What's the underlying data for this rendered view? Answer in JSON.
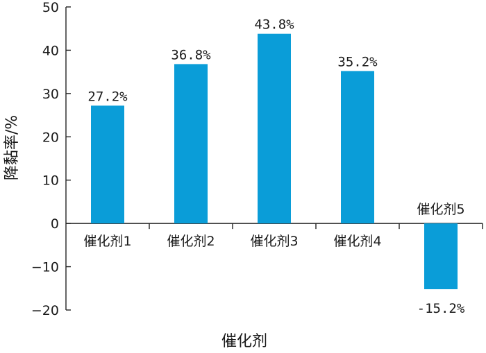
{
  "chart_data": {
    "type": "bar",
    "categories": [
      "催化剂1",
      "催化剂2",
      "催化剂3",
      "催化剂4",
      "催化剂5"
    ],
    "values": [
      27.2,
      36.8,
      43.8,
      35.2,
      -15.2
    ],
    "data_labels": [
      "27.2%",
      "36.8%",
      "43.8%",
      "35.2%",
      "-15.2%"
    ],
    "xlabel": "催化剂",
    "ylabel": "降黏率/%",
    "ylim": [
      -20,
      50
    ],
    "yticks": [
      -20,
      -10,
      0,
      10,
      20,
      30,
      40,
      50
    ],
    "bar_color": "#0a9dd8",
    "grid": false,
    "legend": "none"
  }
}
